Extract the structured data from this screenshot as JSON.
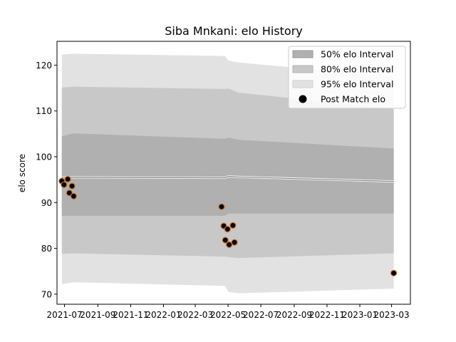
{
  "chart_data": {
    "type": "line",
    "title": "Siba Mnkani: elo History",
    "xlabel": "",
    "ylabel": "elo score",
    "xlim": [
      "2021-06-17",
      "2023-04-05"
    ],
    "ylim": [
      67.8,
      125.2
    ],
    "grid": false,
    "legend_position": "top-right",
    "x_ticks": [
      "2021-07",
      "2021-09",
      "2021-11",
      "2022-01",
      "2022-03",
      "2022-05",
      "2022-07",
      "2022-09",
      "2022-11",
      "2023-01",
      "2023-03"
    ],
    "y_ticks": [
      70,
      80,
      90,
      100,
      110,
      120
    ],
    "bands": {
      "x": [
        "2021-06-26",
        "2021-07-18",
        "2022-04-25",
        "2022-05-02",
        "2022-05-20",
        "2023-03-05"
      ],
      "interval_95": {
        "upper": [
          122.3,
          122.5,
          122.0,
          121.0,
          120.6,
          117.5
        ],
        "lower": [
          72.2,
          72.6,
          71.8,
          70.5,
          70.2,
          71.2
        ]
      },
      "interval_80": {
        "upper": [
          115.1,
          115.3,
          114.8,
          114.9,
          114.0,
          110.4
        ],
        "lower": [
          78.8,
          78.9,
          78.2,
          78.1,
          77.9,
          78.9
        ]
      },
      "interval_50": {
        "upper": [
          104.5,
          105.1,
          103.9,
          104.2,
          103.7,
          101.8
        ],
        "lower": [
          87.1,
          87.1,
          87.1,
          87.6,
          87.6,
          87.6
        ]
      },
      "center": [
        95.5,
        95.5,
        95.4,
        95.7,
        95.6,
        94.6
      ]
    },
    "series": [
      {
        "name": "Post Match elo",
        "x": [
          "2021-06-26",
          "2021-06-30",
          "2021-07-07",
          "2021-07-10",
          "2021-07-15",
          "2021-07-18",
          "2022-04-19",
          "2022-04-23",
          "2022-04-26",
          "2022-04-30",
          "2022-05-03",
          "2022-05-10",
          "2022-05-13",
          "2023-03-05"
        ],
        "values": [
          94.7,
          93.9,
          95.1,
          92.1,
          93.6,
          91.4,
          89.1,
          84.9,
          81.8,
          84.2,
          80.8,
          85.0,
          81.3,
          74.6
        ]
      }
    ],
    "legend": [
      {
        "label": "50% elo Interval",
        "color": "#b0b0b0"
      },
      {
        "label": "80% elo Interval",
        "color": "#c8c8c8"
      },
      {
        "label": "95% elo Interval",
        "color": "#e2e2e2"
      },
      {
        "label": "Post Match elo",
        "color": "#000000"
      }
    ],
    "colors": {
      "band_95": "#e2e2e2",
      "band_80": "#c8c8c8",
      "band_50": "#b0b0b0",
      "center_line": "#808080",
      "marker_fill": "#000000",
      "marker_edge": "#c8742c"
    }
  }
}
